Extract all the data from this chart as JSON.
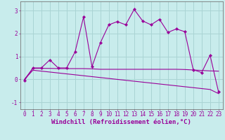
{
  "xlabel": "Windchill (Refroidissement éolien,°C)",
  "background_color": "#c8ecec",
  "grid_color": "#aad4d4",
  "line_color": "#990099",
  "x": [
    0,
    1,
    2,
    3,
    4,
    5,
    6,
    7,
    8,
    9,
    10,
    11,
    12,
    13,
    14,
    15,
    16,
    17,
    18,
    19,
    20,
    21,
    22,
    23
  ],
  "y_line1": [
    -0.05,
    0.5,
    0.5,
    0.85,
    0.5,
    0.5,
    1.2,
    2.72,
    0.55,
    1.6,
    2.38,
    2.52,
    2.38,
    3.05,
    2.55,
    2.38,
    2.62,
    2.05,
    2.2,
    2.08,
    0.42,
    0.3,
    1.05,
    -0.55
  ],
  "y_line2": [
    0.0,
    0.48,
    0.48,
    0.48,
    0.47,
    0.47,
    0.47,
    0.47,
    0.46,
    0.44,
    0.44,
    0.44,
    0.44,
    0.44,
    0.44,
    0.44,
    0.44,
    0.44,
    0.44,
    0.43,
    0.41,
    0.39,
    0.37,
    0.36
  ],
  "y_line3": [
    0.0,
    0.4,
    0.36,
    0.32,
    0.28,
    0.24,
    0.2,
    0.16,
    0.12,
    0.08,
    0.04,
    0.0,
    -0.04,
    -0.08,
    -0.12,
    -0.16,
    -0.2,
    -0.24,
    -0.28,
    -0.32,
    -0.36,
    -0.4,
    -0.44,
    -0.62
  ],
  "ylim": [
    -1.3,
    3.4
  ],
  "xlim": [
    -0.5,
    23.5
  ],
  "yticks": [
    -1,
    0,
    1,
    2,
    3
  ],
  "xticks": [
    0,
    1,
    2,
    3,
    4,
    5,
    6,
    7,
    8,
    9,
    10,
    11,
    12,
    13,
    14,
    15,
    16,
    17,
    18,
    19,
    20,
    21,
    22,
    23
  ],
  "tick_fontsize": 5.5,
  "xlabel_fontsize": 6.5
}
